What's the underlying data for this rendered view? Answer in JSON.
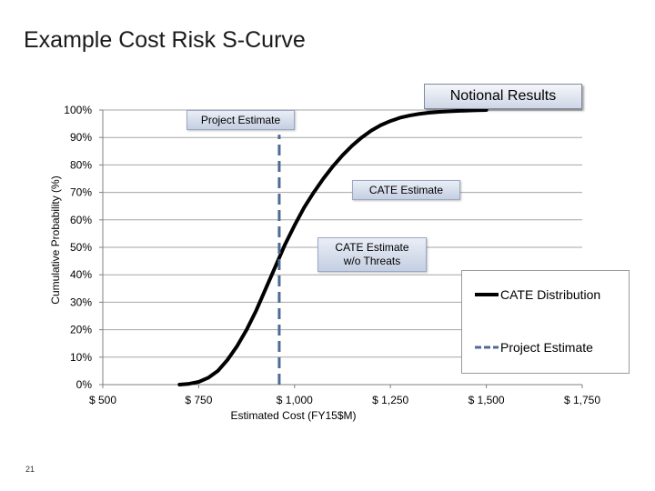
{
  "slide": {
    "title": "Example Cost Risk S-Curve",
    "page_number": "21"
  },
  "badge": {
    "label": "Notional Results"
  },
  "callouts": {
    "project_estimate": "Project Estimate",
    "cate_estimate": "CATE Estimate",
    "cate_wo_threats_line1": "CATE Estimate",
    "cate_wo_threats_line2": "w/o Threats"
  },
  "legend": {
    "cate_distribution": "CATE Distribution",
    "project_estimate": "Project Estimate"
  },
  "colors": {
    "curve": "#000000",
    "estimate_line": "#4f6a96",
    "grid": "#a6a6a6",
    "axis": "#808080"
  },
  "chart_data": {
    "type": "line",
    "title": "",
    "xlabel": "Estimated Cost (FY15$M)",
    "ylabel": "Cumulative Probability (%)",
    "xlim": [
      500,
      1750
    ],
    "ylim": [
      0,
      100
    ],
    "x_ticks": [
      500,
      750,
      1000,
      1250,
      1500,
      1750
    ],
    "x_tick_labels": [
      "$ 500",
      "$ 750",
      "$ 1,000",
      "$ 1,250",
      "$ 1,500",
      "$ 1,750"
    ],
    "y_ticks": [
      0,
      10,
      20,
      30,
      40,
      50,
      60,
      70,
      80,
      90,
      100
    ],
    "y_tick_labels": [
      "0%",
      "10%",
      "20%",
      "30%",
      "40%",
      "50%",
      "60%",
      "70%",
      "80%",
      "90%",
      "100%"
    ],
    "grid": true,
    "legend_position": "right",
    "series": [
      {
        "name": "CATE Distribution",
        "style": "solid",
        "x": [
          700,
          725,
          750,
          775,
          800,
          825,
          850,
          875,
          900,
          925,
          950,
          975,
          1000,
          1025,
          1050,
          1075,
          1100,
          1125,
          1150,
          1175,
          1200,
          1225,
          1250,
          1275,
          1300,
          1325,
          1350,
          1375,
          1400,
          1425,
          1450,
          1475,
          1500
        ],
        "y": [
          0,
          0.3,
          1,
          2.5,
          5,
          9,
          14,
          20,
          27,
          35,
          43,
          51,
          58,
          64.5,
          70,
          75,
          79.5,
          83.5,
          87,
          90,
          92.5,
          94.5,
          96,
          97.2,
          98,
          98.6,
          99,
          99.3,
          99.5,
          99.65,
          99.8,
          99.9,
          100
        ]
      },
      {
        "name": "Project Estimate",
        "style": "dashed",
        "x": [
          960,
          960
        ],
        "y": [
          0,
          91
        ]
      }
    ],
    "annotations": [
      {
        "text": "Project Estimate",
        "near_x": 960,
        "near_y": 97
      },
      {
        "text": "CATE Estimate",
        "near_x": 1125,
        "near_y": 71
      },
      {
        "text": "CATE Estimate w/o Threats",
        "near_x": 1150,
        "near_y": 50
      }
    ]
  }
}
